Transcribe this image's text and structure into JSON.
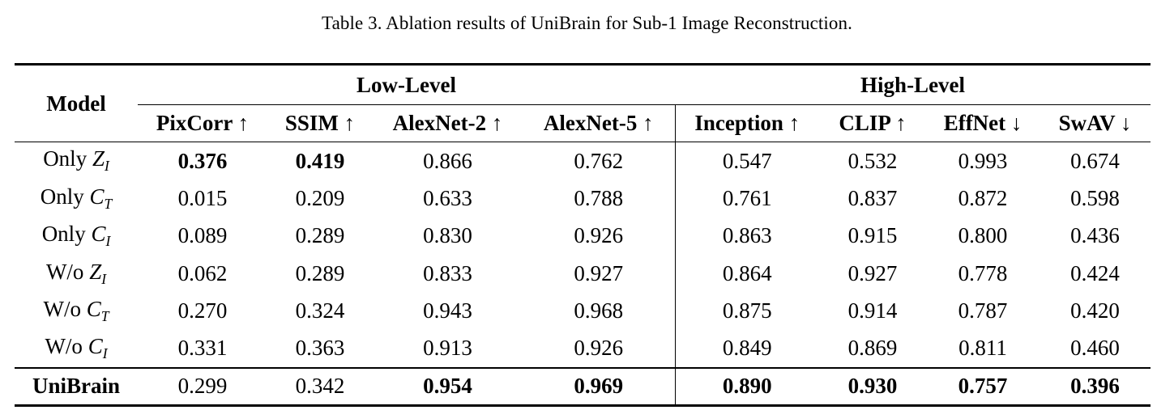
{
  "caption": "Table 3. Ablation results of UniBrain for Sub-1 Image Reconstruction.",
  "header": {
    "model_label": "Model",
    "low_level_label": "Low-Level",
    "high_level_label": "High-Level",
    "columns": [
      {
        "name": "PixCorr",
        "arrow": "↑"
      },
      {
        "name": "SSIM",
        "arrow": "↑"
      },
      {
        "name": "AlexNet-2",
        "arrow": "↑"
      },
      {
        "name": "AlexNet-5",
        "arrow": "↑"
      },
      {
        "name": "Inception",
        "arrow": "↑"
      },
      {
        "name": "CLIP",
        "arrow": "↑"
      },
      {
        "name": "EffNet",
        "arrow": "↓"
      },
      {
        "name": "SwAV",
        "arrow": "↓"
      }
    ]
  },
  "rows": [
    {
      "prefix": "Only",
      "var": "Z",
      "sub": "I",
      "values": [
        "0.376",
        "0.419",
        "0.866",
        "0.762",
        "0.547",
        "0.532",
        "0.993",
        "0.674"
      ]
    },
    {
      "prefix": "Only",
      "var": "C",
      "sub": "T",
      "values": [
        "0.015",
        "0.209",
        "0.633",
        "0.788",
        "0.761",
        "0.837",
        "0.872",
        "0.598"
      ]
    },
    {
      "prefix": "Only",
      "var": "C",
      "sub": "I",
      "values": [
        "0.089",
        "0.289",
        "0.830",
        "0.926",
        "0.863",
        "0.915",
        "0.800",
        "0.436"
      ]
    },
    {
      "prefix": "W/o",
      "var": "Z",
      "sub": "I",
      "values": [
        "0.062",
        "0.289",
        "0.833",
        "0.927",
        "0.864",
        "0.927",
        "0.778",
        "0.424"
      ]
    },
    {
      "prefix": "W/o",
      "var": "C",
      "sub": "T",
      "values": [
        "0.270",
        "0.324",
        "0.943",
        "0.968",
        "0.875",
        "0.914",
        "0.787",
        "0.420"
      ]
    },
    {
      "prefix": "W/o",
      "var": "C",
      "sub": "I",
      "values": [
        "0.331",
        "0.363",
        "0.913",
        "0.926",
        "0.849",
        "0.869",
        "0.811",
        "0.460"
      ]
    }
  ],
  "final_row": {
    "name": "UniBrain",
    "values": [
      "0.299",
      "0.342",
      "0.954",
      "0.969",
      "0.890",
      "0.930",
      "0.757",
      "0.396"
    ]
  }
}
